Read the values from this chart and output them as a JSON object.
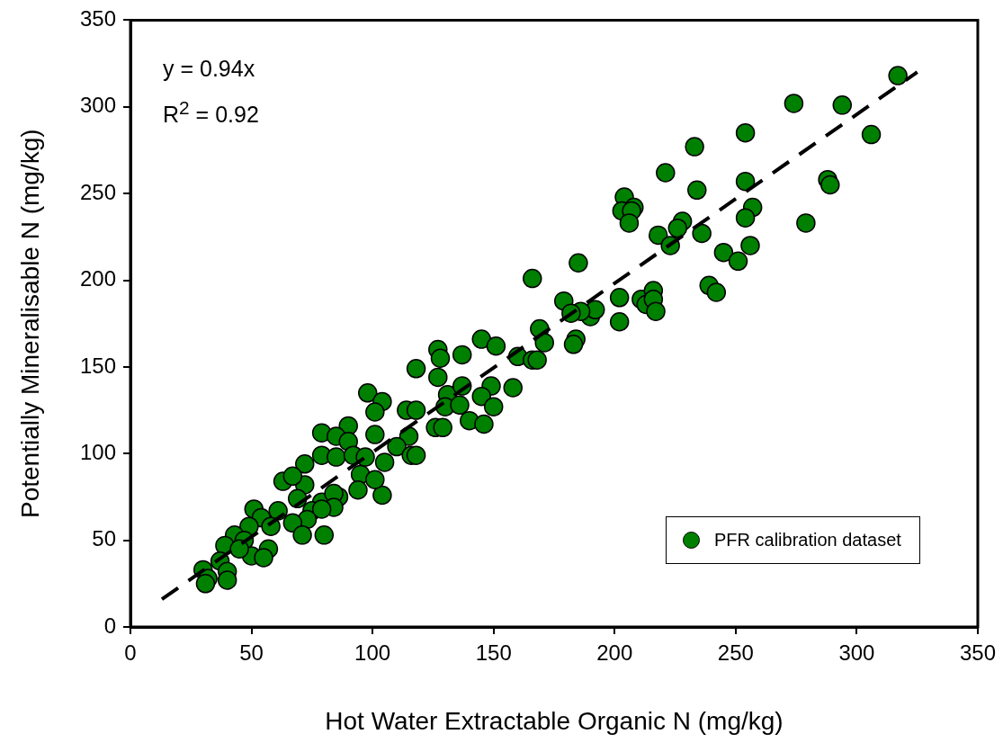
{
  "chart_data": {
    "type": "scatter",
    "xlabel": "Hot Water Extractable Organic N (mg/kg)",
    "ylabel": "Potentially Mineralisable N (mg/kg)",
    "xlim": [
      0,
      350
    ],
    "ylim": [
      0,
      350
    ],
    "xticks": [
      0,
      50,
      100,
      150,
      200,
      250,
      300,
      350
    ],
    "yticks": [
      0,
      50,
      100,
      150,
      200,
      250,
      300,
      350
    ],
    "grid": false,
    "legend": "bottom right",
    "annotations": [
      "y = 0.94x",
      "R$^{2}$ = 0.92"
    ],
    "series": [
      {
        "name": "PFR calibration dataset",
        "marker": "circle",
        "color": "#008000",
        "x": [
          317,
          274,
          294,
          254,
          306,
          233,
          221,
          254,
          288,
          289,
          234,
          204,
          203,
          208,
          207,
          206,
          228,
          226,
          218,
          223,
          236,
          257,
          254,
          256,
          245,
          251,
          239,
          242,
          279,
          185,
          202,
          202,
          211,
          213,
          216,
          216,
          217,
          190,
          192,
          186,
          166,
          179,
          182,
          169,
          171,
          184,
          183,
          160,
          166,
          168,
          158,
          145,
          151,
          127,
          128,
          137,
          118,
          127,
          131,
          137,
          149,
          145,
          150,
          130,
          136,
          140,
          146,
          98,
          104,
          101,
          114,
          118,
          126,
          129,
          101,
          115,
          110,
          116,
          118,
          105,
          90,
          79,
          85,
          90,
          79,
          72,
          85,
          92,
          97,
          95,
          94,
          86,
          104,
          101,
          72,
          63,
          67,
          69,
          79,
          84,
          84,
          75,
          79,
          73,
          67,
          71,
          80,
          51,
          61,
          54,
          58,
          49,
          43,
          47,
          57,
          50,
          55,
          39,
          45,
          37,
          30,
          32,
          31,
          40,
          40
        ],
        "values": [
          318,
          302,
          301,
          285,
          284,
          277,
          262,
          257,
          258,
          255,
          252,
          248,
          240,
          242,
          240,
          233,
          234,
          230,
          226,
          220,
          227,
          242,
          236,
          220,
          216,
          211,
          197,
          193,
          233,
          210,
          190,
          176,
          189,
          186,
          194,
          189,
          182,
          179,
          183,
          182,
          201,
          188,
          181,
          172,
          164,
          166,
          163,
          156,
          154,
          154,
          138,
          166,
          162,
          160,
          155,
          157,
          149,
          144,
          134,
          139,
          139,
          133,
          127,
          127,
          128,
          119,
          117,
          135,
          130,
          124,
          125,
          125,
          115,
          115,
          111,
          110,
          104,
          99,
          99,
          95,
          116,
          112,
          110,
          107,
          99,
          94,
          98,
          99,
          98,
          88,
          79,
          75,
          76,
          85,
          82,
          84,
          87,
          74,
          72,
          77,
          69,
          67,
          68,
          62,
          60,
          53,
          53,
          68,
          67,
          63,
          58,
          58,
          53,
          50,
          45,
          41,
          40,
          47,
          45,
          38,
          33,
          28,
          25,
          32,
          27
        ]
      },
      {
        "type": "line",
        "color": "#000000",
        "line_style": "dashed",
        "x": [
          13,
          325
        ],
        "values": [
          16,
          320
        ]
      }
    ]
  }
}
